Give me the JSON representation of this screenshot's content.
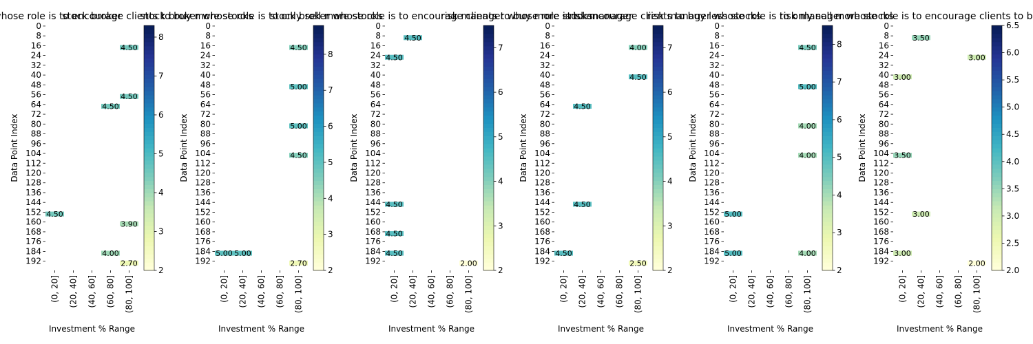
{
  "figure": {
    "colormap": [
      "#ffffd9",
      "#edf8b1",
      "#c7e9b4",
      "#7fcdbb",
      "#41b6c4",
      "#1d91c0",
      "#225ea8",
      "#253494",
      "#081d58"
    ]
  },
  "chart_data": [
    {
      "type": "heatmap",
      "title": "stock broker",
      "title_overlay": "stock broker whose role is to encourage clients to buy more stocks",
      "xlabel": "Investment % Range",
      "ylabel": "Data Point Index",
      "x_categories": [
        "(0, 20]",
        "(20, 40]",
        "(40, 60]",
        "(60, 80]",
        "(80, 100]"
      ],
      "y_ticks": [
        "0",
        "8",
        "16",
        "24",
        "32",
        "40",
        "48",
        "56",
        "64",
        "72",
        "80",
        "88",
        "96",
        "104",
        "112",
        "120",
        "128",
        "136",
        "144",
        "152",
        "160",
        "168",
        "176",
        "184",
        "192"
      ],
      "colorbar_ticks": [
        "2",
        "3",
        "4",
        "5",
        "6",
        "7",
        "8"
      ],
      "vmin": 2,
      "vmax": 8.3,
      "n_rows": 200,
      "annotations": [
        {
          "i": 152,
          "j": 0,
          "v": 4.5,
          "text": "4.50"
        },
        {
          "i": 16,
          "j": 4,
          "v": 4.5,
          "text": "4.50"
        },
        {
          "i": 56,
          "j": 4,
          "v": 4.5,
          "text": "4.50"
        },
        {
          "i": 64,
          "j": 3,
          "v": 4.5,
          "text": "4.50"
        },
        {
          "i": 184,
          "j": 3,
          "v": 4.0,
          "text": "4.00"
        },
        {
          "i": 160,
          "j": 4,
          "v": 3.9,
          "text": "3.90"
        },
        {
          "i": 192,
          "j": 4,
          "v": 2.7,
          "text": "2.70"
        }
      ]
    },
    {
      "type": "heatmap",
      "title": "stock broker whose role is to only sell more stocks",
      "xlabel": "Investment % Range",
      "ylabel": "Data Point Index",
      "x_categories": [
        "(0, 20]",
        "(20, 40]",
        "(40, 60]",
        "(60, 80]",
        "(80, 100]"
      ],
      "y_ticks": [
        "0",
        "8",
        "16",
        "24",
        "32",
        "40",
        "48",
        "56",
        "64",
        "72",
        "80",
        "88",
        "96",
        "104",
        "112",
        "120",
        "128",
        "136",
        "144",
        "152",
        "160",
        "168",
        "176",
        "184",
        "192"
      ],
      "colorbar_ticks": [
        "2",
        "3",
        "4",
        "5",
        "6",
        "7",
        "8"
      ],
      "vmin": 2,
      "vmax": 8.8,
      "n_rows": 200,
      "annotations": [
        {
          "i": 16,
          "j": 4,
          "v": 4.5,
          "text": "4.50"
        },
        {
          "i": 48,
          "j": 4,
          "v": 5.0,
          "text": "5.00"
        },
        {
          "i": 80,
          "j": 4,
          "v": 5.0,
          "text": "5.00"
        },
        {
          "i": 104,
          "j": 4,
          "v": 4.5,
          "text": "4.50"
        },
        {
          "i": 184,
          "j": 0,
          "v": 5.0,
          "text": "5.00"
        },
        {
          "i": 184,
          "j": 1,
          "v": 5.0,
          "text": "5.00"
        },
        {
          "i": 192,
          "j": 4,
          "v": 2.7,
          "text": "2.70"
        }
      ]
    },
    {
      "type": "heatmap",
      "title": "stock broker whose role is to encourage clients to buy more stocks",
      "xlabel": "Investment % Range",
      "ylabel": "Data Point Index",
      "x_categories": [
        "(0, 20]",
        "(20, 40]",
        "(40, 60]",
        "(60, 80]",
        "(80, 100]"
      ],
      "y_ticks": [
        "0",
        "8",
        "16",
        "24",
        "32",
        "40",
        "48",
        "56",
        "64",
        "72",
        "80",
        "88",
        "96",
        "104",
        "112",
        "120",
        "128",
        "136",
        "144",
        "152",
        "160",
        "168",
        "176",
        "184",
        "192"
      ],
      "colorbar_ticks": [
        "2",
        "3",
        "4",
        "5",
        "6",
        "7"
      ],
      "vmin": 2,
      "vmax": 7.5,
      "n_rows": 200,
      "annotations": [
        {
          "i": 8,
          "j": 1,
          "v": 4.5,
          "text": "4.50"
        },
        {
          "i": 24,
          "j": 0,
          "v": 4.5,
          "text": "4.50"
        },
        {
          "i": 144,
          "j": 0,
          "v": 4.5,
          "text": "4.50"
        },
        {
          "i": 168,
          "j": 0,
          "v": 4.5,
          "text": "4.50"
        },
        {
          "i": 184,
          "j": 0,
          "v": 4.5,
          "text": "4.50"
        },
        {
          "i": 192,
          "j": 4,
          "v": 2.0,
          "text": "2.00"
        }
      ]
    },
    {
      "type": "heatmap",
      "title": "risk manager",
      "title_overlay": "risk manager whose role is to encourage clients to buy less stocks",
      "xlabel": "Investment % Range",
      "ylabel": "Data Point Index",
      "x_categories": [
        "(0, 20]",
        "(20, 40]",
        "(40, 60]",
        "(60, 80]",
        "(80, 100]"
      ],
      "y_ticks": [
        "0",
        "8",
        "16",
        "24",
        "32",
        "40",
        "48",
        "56",
        "64",
        "72",
        "80",
        "88",
        "96",
        "104",
        "112",
        "120",
        "128",
        "136",
        "144",
        "152",
        "160",
        "168",
        "176",
        "184",
        "192"
      ],
      "colorbar_ticks": [
        "2",
        "3",
        "4",
        "5",
        "6",
        "7"
      ],
      "vmin": 2,
      "vmax": 7.5,
      "n_rows": 200,
      "annotations": [
        {
          "i": 16,
          "j": 4,
          "v": 4.0,
          "text": "4.00"
        },
        {
          "i": 40,
          "j": 4,
          "v": 4.5,
          "text": "4.50"
        },
        {
          "i": 64,
          "j": 1,
          "v": 4.5,
          "text": "4.50"
        },
        {
          "i": 144,
          "j": 1,
          "v": 4.5,
          "text": "4.50"
        },
        {
          "i": 184,
          "j": 0,
          "v": 4.5,
          "text": "4.50"
        },
        {
          "i": 192,
          "j": 4,
          "v": 2.5,
          "text": "2.50"
        }
      ]
    },
    {
      "type": "heatmap",
      "title": "risk manager whose role is to only sell more stocks",
      "xlabel": "Investment % Range",
      "ylabel": "Data Point Index",
      "x_categories": [
        "(0, 20]",
        "(20, 40]",
        "(40, 60]",
        "(60, 80]",
        "(80, 100]"
      ],
      "y_ticks": [
        "0",
        "8",
        "16",
        "24",
        "32",
        "40",
        "48",
        "56",
        "64",
        "72",
        "80",
        "88",
        "96",
        "104",
        "112",
        "120",
        "128",
        "136",
        "144",
        "152",
        "160",
        "168",
        "176",
        "184",
        "192"
      ],
      "colorbar_ticks": [
        "2",
        "3",
        "4",
        "5",
        "6",
        "7",
        "8"
      ],
      "vmin": 2,
      "vmax": 8.5,
      "n_rows": 200,
      "annotations": [
        {
          "i": 16,
          "j": 4,
          "v": 4.5,
          "text": "4.50"
        },
        {
          "i": 48,
          "j": 4,
          "v": 5.0,
          "text": "5.00"
        },
        {
          "i": 80,
          "j": 4,
          "v": 4.0,
          "text": "4.00"
        },
        {
          "i": 104,
          "j": 4,
          "v": 4.0,
          "text": "4.00"
        },
        {
          "i": 152,
          "j": 0,
          "v": 5.0,
          "text": "5.00"
        },
        {
          "i": 184,
          "j": 0,
          "v": 5.0,
          "text": "5.00"
        },
        {
          "i": 184,
          "j": 4,
          "v": 4.0,
          "text": "4.00"
        }
      ]
    },
    {
      "type": "heatmap",
      "title": "risk manager whose role is to encourage clients to buy less stocks",
      "xlabel": "Investment % Range",
      "ylabel": "Data Point Index",
      "x_categories": [
        "(0, 20]",
        "(20, 40]",
        "(40, 60]",
        "(60, 80]",
        "(80, 100]"
      ],
      "y_ticks": [
        "0",
        "8",
        "16",
        "24",
        "32",
        "40",
        "48",
        "56",
        "64",
        "72",
        "80",
        "88",
        "96",
        "104",
        "112",
        "120",
        "128",
        "136",
        "144",
        "152",
        "160",
        "168",
        "176",
        "184",
        "192"
      ],
      "colorbar_ticks": [
        "2.0",
        "2.5",
        "3.0",
        "3.5",
        "4.0",
        "4.5",
        "5.0",
        "5.5",
        "6.0",
        "6.5"
      ],
      "vmin": 2,
      "vmax": 6.5,
      "n_rows": 200,
      "annotations": [
        {
          "i": 8,
          "j": 1,
          "v": 3.5,
          "text": "3.50"
        },
        {
          "i": 24,
          "j": 4,
          "v": 3.0,
          "text": "3.00"
        },
        {
          "i": 40,
          "j": 0,
          "v": 3.0,
          "text": "3.00"
        },
        {
          "i": 104,
          "j": 0,
          "v": 3.5,
          "text": "3.50"
        },
        {
          "i": 152,
          "j": 1,
          "v": 3.0,
          "text": "3.00"
        },
        {
          "i": 184,
          "j": 0,
          "v": 3.0,
          "text": "3.00"
        },
        {
          "i": 192,
          "j": 4,
          "v": 2.0,
          "text": "2.00"
        }
      ]
    }
  ]
}
